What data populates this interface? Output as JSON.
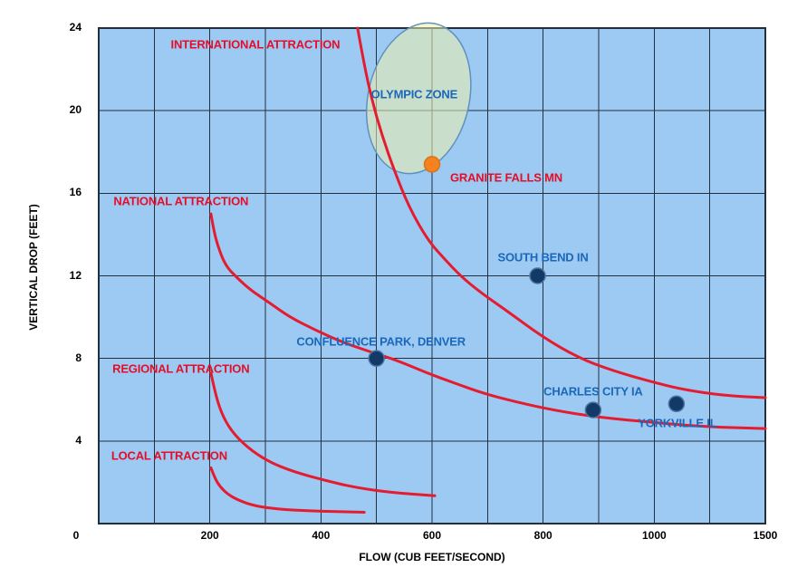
{
  "colors": {
    "plot_bg": "#9CCAF2",
    "grid": "#22303E",
    "border": "#22303E",
    "curve_red": "#E51C30",
    "red_text": "#E50D28",
    "blue_text": "#1B67B9",
    "marker_navy": "#123A67",
    "marker_navy_stroke": "#4E739F",
    "marker_orange": "#F5821F",
    "marker_orange_stroke": "#D9731A",
    "zone_fill": "rgba(238,240,172,0.55)",
    "zone_stroke": "#6090BE",
    "axis_text": "#000000"
  },
  "chart_data": {
    "type": "scatter",
    "title": "",
    "xlabel": "FLOW (CUB FEET/SECOND)",
    "ylabel": "VERTICAL DROP (FEET)",
    "xlim": [
      0,
      1500
    ],
    "ylim": [
      0,
      24
    ],
    "grid": true,
    "x_axis_note": "nonlinear x axis: 0-1000 linear over 10 grid cells, 1000-1500 compressed into last 2 cells",
    "x_ticks": [
      {
        "v": 0,
        "label": "0",
        "dx": -25
      },
      {
        "v": 200,
        "label": "200",
        "dx": 0
      },
      {
        "v": 400,
        "label": "400",
        "dx": 0
      },
      {
        "v": 600,
        "label": "600",
        "dx": 0
      },
      {
        "v": 800,
        "label": "800",
        "dx": 0
      },
      {
        "v": 1000,
        "label": "1000",
        "dx": 0
      },
      {
        "v": 1500,
        "label": "1500",
        "dx": 0
      }
    ],
    "y_ticks": [
      {
        "v": 4,
        "label": "4"
      },
      {
        "v": 8,
        "label": "8"
      },
      {
        "v": 12,
        "label": "12"
      },
      {
        "v": 16,
        "label": "16"
      },
      {
        "v": 20,
        "label": "20"
      },
      {
        "v": 24,
        "label": "24"
      }
    ],
    "x_gridline_values": [
      100,
      200,
      300,
      400,
      500,
      600,
      700,
      800,
      900,
      1000,
      1250
    ],
    "y_gridline_values": [
      4,
      8,
      12,
      16,
      20
    ],
    "points": [
      {
        "label": "GRANITE FALLS MN",
        "flow": 600,
        "drop": 17.4,
        "marker": "orange",
        "label_color": "red",
        "label_anchor": "start",
        "label_offset": [
          20,
          15
        ]
      },
      {
        "label": "SOUTH BEND IN",
        "flow": 790,
        "drop": 12,
        "marker": "navy",
        "label_color": "blue",
        "label_anchor": "middle",
        "label_offset": [
          6,
          -21
        ]
      },
      {
        "label": "CONFLUENCE PARK, DENVER",
        "flow": 500,
        "drop": 8,
        "marker": "navy",
        "label_color": "blue",
        "label_anchor": "middle",
        "label_offset": [
          5,
          -19
        ]
      },
      {
        "label": "CHARLES CITY IA",
        "flow": 890,
        "drop": 5.5,
        "marker": "navy",
        "label_color": "blue",
        "label_anchor": "middle",
        "label_offset": [
          0,
          -21
        ]
      },
      {
        "label": "YORKVILLE IL",
        "flow": 1100,
        "drop": 5.8,
        "marker": "navy",
        "label_color": "blue",
        "label_anchor": "middle",
        "label_offset": [
          1,
          21
        ]
      }
    ],
    "curves": [
      {
        "label": "INTERNATIONAL ATTRACTION",
        "label_at": {
          "flow": 282,
          "drop": 23.2
        },
        "points": [
          [
            466,
            24.0
          ],
          [
            478,
            22.2
          ],
          [
            492,
            20.5
          ],
          [
            510,
            18.8
          ],
          [
            532,
            17.1
          ],
          [
            559,
            15.3
          ],
          [
            593,
            13.7
          ],
          [
            623,
            12.8
          ],
          [
            651,
            12.0
          ],
          [
            687,
            11.2
          ],
          [
            735,
            10.3
          ],
          [
            801,
            9.0
          ],
          [
            866,
            8.0
          ],
          [
            926,
            7.4
          ],
          [
            991,
            6.9
          ],
          [
            1125,
            6.5
          ],
          [
            1312,
            6.2
          ],
          [
            1500,
            6.1
          ]
        ]
      },
      {
        "label": "NATIONAL ATTRACTION",
        "label_at": {
          "flow": 148,
          "drop": 15.6
        },
        "points": [
          [
            202,
            15.0
          ],
          [
            207,
            14.2
          ],
          [
            215,
            13.4
          ],
          [
            228,
            12.5
          ],
          [
            249,
            11.9
          ],
          [
            274,
            11.3
          ],
          [
            307,
            10.7
          ],
          [
            344,
            10.0
          ],
          [
            388,
            9.4
          ],
          [
            437,
            8.8
          ],
          [
            491,
            8.3
          ],
          [
            538,
            7.9
          ],
          [
            590,
            7.3
          ],
          [
            641,
            6.8
          ],
          [
            693,
            6.3
          ],
          [
            750,
            5.9
          ],
          [
            817,
            5.5
          ],
          [
            898,
            5.15
          ],
          [
            1000,
            4.9
          ],
          [
            1206,
            4.7
          ],
          [
            1500,
            4.6
          ]
        ]
      },
      {
        "label": "REGIONAL ATTRACTION",
        "label_at": {
          "flow": 148,
          "drop": 7.5
        },
        "points": [
          [
            202,
            7.3
          ],
          [
            209,
            6.4
          ],
          [
            220,
            5.4
          ],
          [
            238,
            4.5
          ],
          [
            267,
            3.7
          ],
          [
            305,
            3.0
          ],
          [
            352,
            2.5
          ],
          [
            406,
            2.1
          ],
          [
            461,
            1.75
          ],
          [
            528,
            1.5
          ],
          [
            605,
            1.35
          ]
        ]
      },
      {
        "label": "LOCAL ATTRACTION",
        "label_at": {
          "flow": 127,
          "drop": 3.3
        },
        "points": [
          [
            202,
            2.7
          ],
          [
            209,
            2.2
          ],
          [
            218,
            1.8
          ],
          [
            233,
            1.4
          ],
          [
            254,
            1.1
          ],
          [
            282,
            0.85
          ],
          [
            323,
            0.7
          ],
          [
            375,
            0.62
          ],
          [
            430,
            0.58
          ],
          [
            478,
            0.55
          ]
        ]
      }
    ],
    "zone": {
      "label": "OLYMPIC ZONE",
      "label_at": {
        "flow": 568,
        "drop": 20.8
      },
      "center": {
        "flow": 576,
        "drop": 20.6
      },
      "rx_flow": 91,
      "ry_drop": 3.7,
      "rotation_deg": 13
    }
  }
}
